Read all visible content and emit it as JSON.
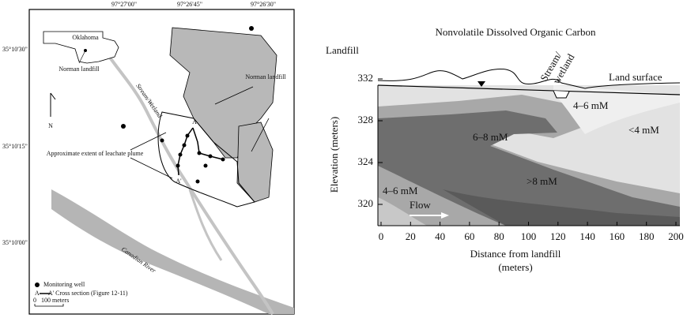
{
  "map": {
    "lon_labels": [
      "97°27'00\"",
      "97°26'45\"",
      "97°26'30\""
    ],
    "lat_labels": [
      "35°10'30\"",
      "35°10'15\"",
      "35°10'00\""
    ],
    "inset_state": "Oklahoma",
    "inset_site": "Norman landfill",
    "stream": "Stream/Wetland",
    "landfill": "Norman landfill",
    "plume": "Approximate extent of leachate plume",
    "section_start": "A",
    "section_end": "A'",
    "north": "N",
    "river": "Canadian River",
    "legend": {
      "well": "Monitoring well",
      "section": "A — A' Cross section (Figure 12-11)",
      "scale_zero": "0",
      "scale_length": "100 meters"
    }
  },
  "section": {
    "title": "Nonvolatile Dissolved Organic Carbon",
    "landfill": "Landfill",
    "stream": [
      "Stream/",
      "wetland"
    ],
    "land_surface": "Land surface",
    "y_label": "Elevation (meters)",
    "x_label": [
      "Distance from landfill",
      "(meters)"
    ],
    "y_ticks": [
      "332",
      "328",
      "324",
      "320"
    ],
    "x_ticks": [
      "0",
      "20",
      "40",
      "60",
      "80",
      "100",
      "120",
      "140",
      "160",
      "180",
      "200"
    ],
    "zones": [
      "4–6 mM",
      "<4 mM",
      "6–8 mM",
      ">8 mM",
      "4–6 mM"
    ],
    "flow": "Flow"
  }
}
